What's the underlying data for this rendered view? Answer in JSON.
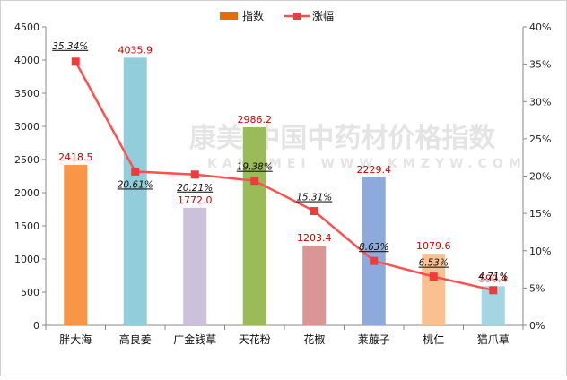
{
  "chart_data": {
    "type": "bar",
    "categories": [
      "胖大海",
      "高良姜",
      "广金钱草",
      "天花粉",
      "花椒",
      "莱菔子",
      "桃仁",
      "猫爪草"
    ],
    "series": [
      {
        "name": "指数",
        "type": "bar",
        "axis": "left",
        "values": [
          2418.5,
          4035.9,
          1772.0,
          2986.2,
          1203.4,
          2229.4,
          1079.6,
          590.4
        ],
        "value_labels": [
          "2418.5",
          "4035.9",
          "1772.0",
          "2986.2",
          "1203.4",
          "2229.4",
          "1079.6",
          "590.4"
        ],
        "bar_colors": [
          "#f79646",
          "#92cddc",
          "#ccc1da",
          "#9bbb59",
          "#d99694",
          "#8eaadb",
          "#fac090",
          "#a5d5e3"
        ]
      },
      {
        "name": "涨幅",
        "type": "line",
        "axis": "right",
        "values": [
          0.3534,
          0.2061,
          0.2021,
          0.1938,
          0.1531,
          0.0863,
          0.0653,
          0.0471
        ],
        "value_labels": [
          "35.34%",
          "20.61%",
          "20.21%",
          "19.38%",
          "15.31%",
          "8.63%",
          "6.53%",
          "4.71%"
        ],
        "color": "#ff5050"
      }
    ],
    "y_left": {
      "ylim": [
        0,
        4500
      ],
      "ticks": [
        "0",
        "500",
        "1000",
        "1500",
        "2000",
        "2500",
        "3000",
        "3500",
        "4000",
        "4500"
      ]
    },
    "y_right": {
      "ylim": [
        0,
        0.4
      ],
      "ticks": [
        "0%",
        "5%",
        "10%",
        "15%",
        "20%",
        "25%",
        "30%",
        "35%",
        "40%"
      ]
    },
    "legend": {
      "position": "top-center",
      "entries": [
        "指数",
        "涨幅"
      ]
    },
    "grid": false,
    "title": "",
    "xlabel": "",
    "ylabel": ""
  },
  "watermark": {
    "text": "康美·中国中药材价格指数",
    "subtext": "KANGMEI WWW.KMZYW.COM"
  }
}
